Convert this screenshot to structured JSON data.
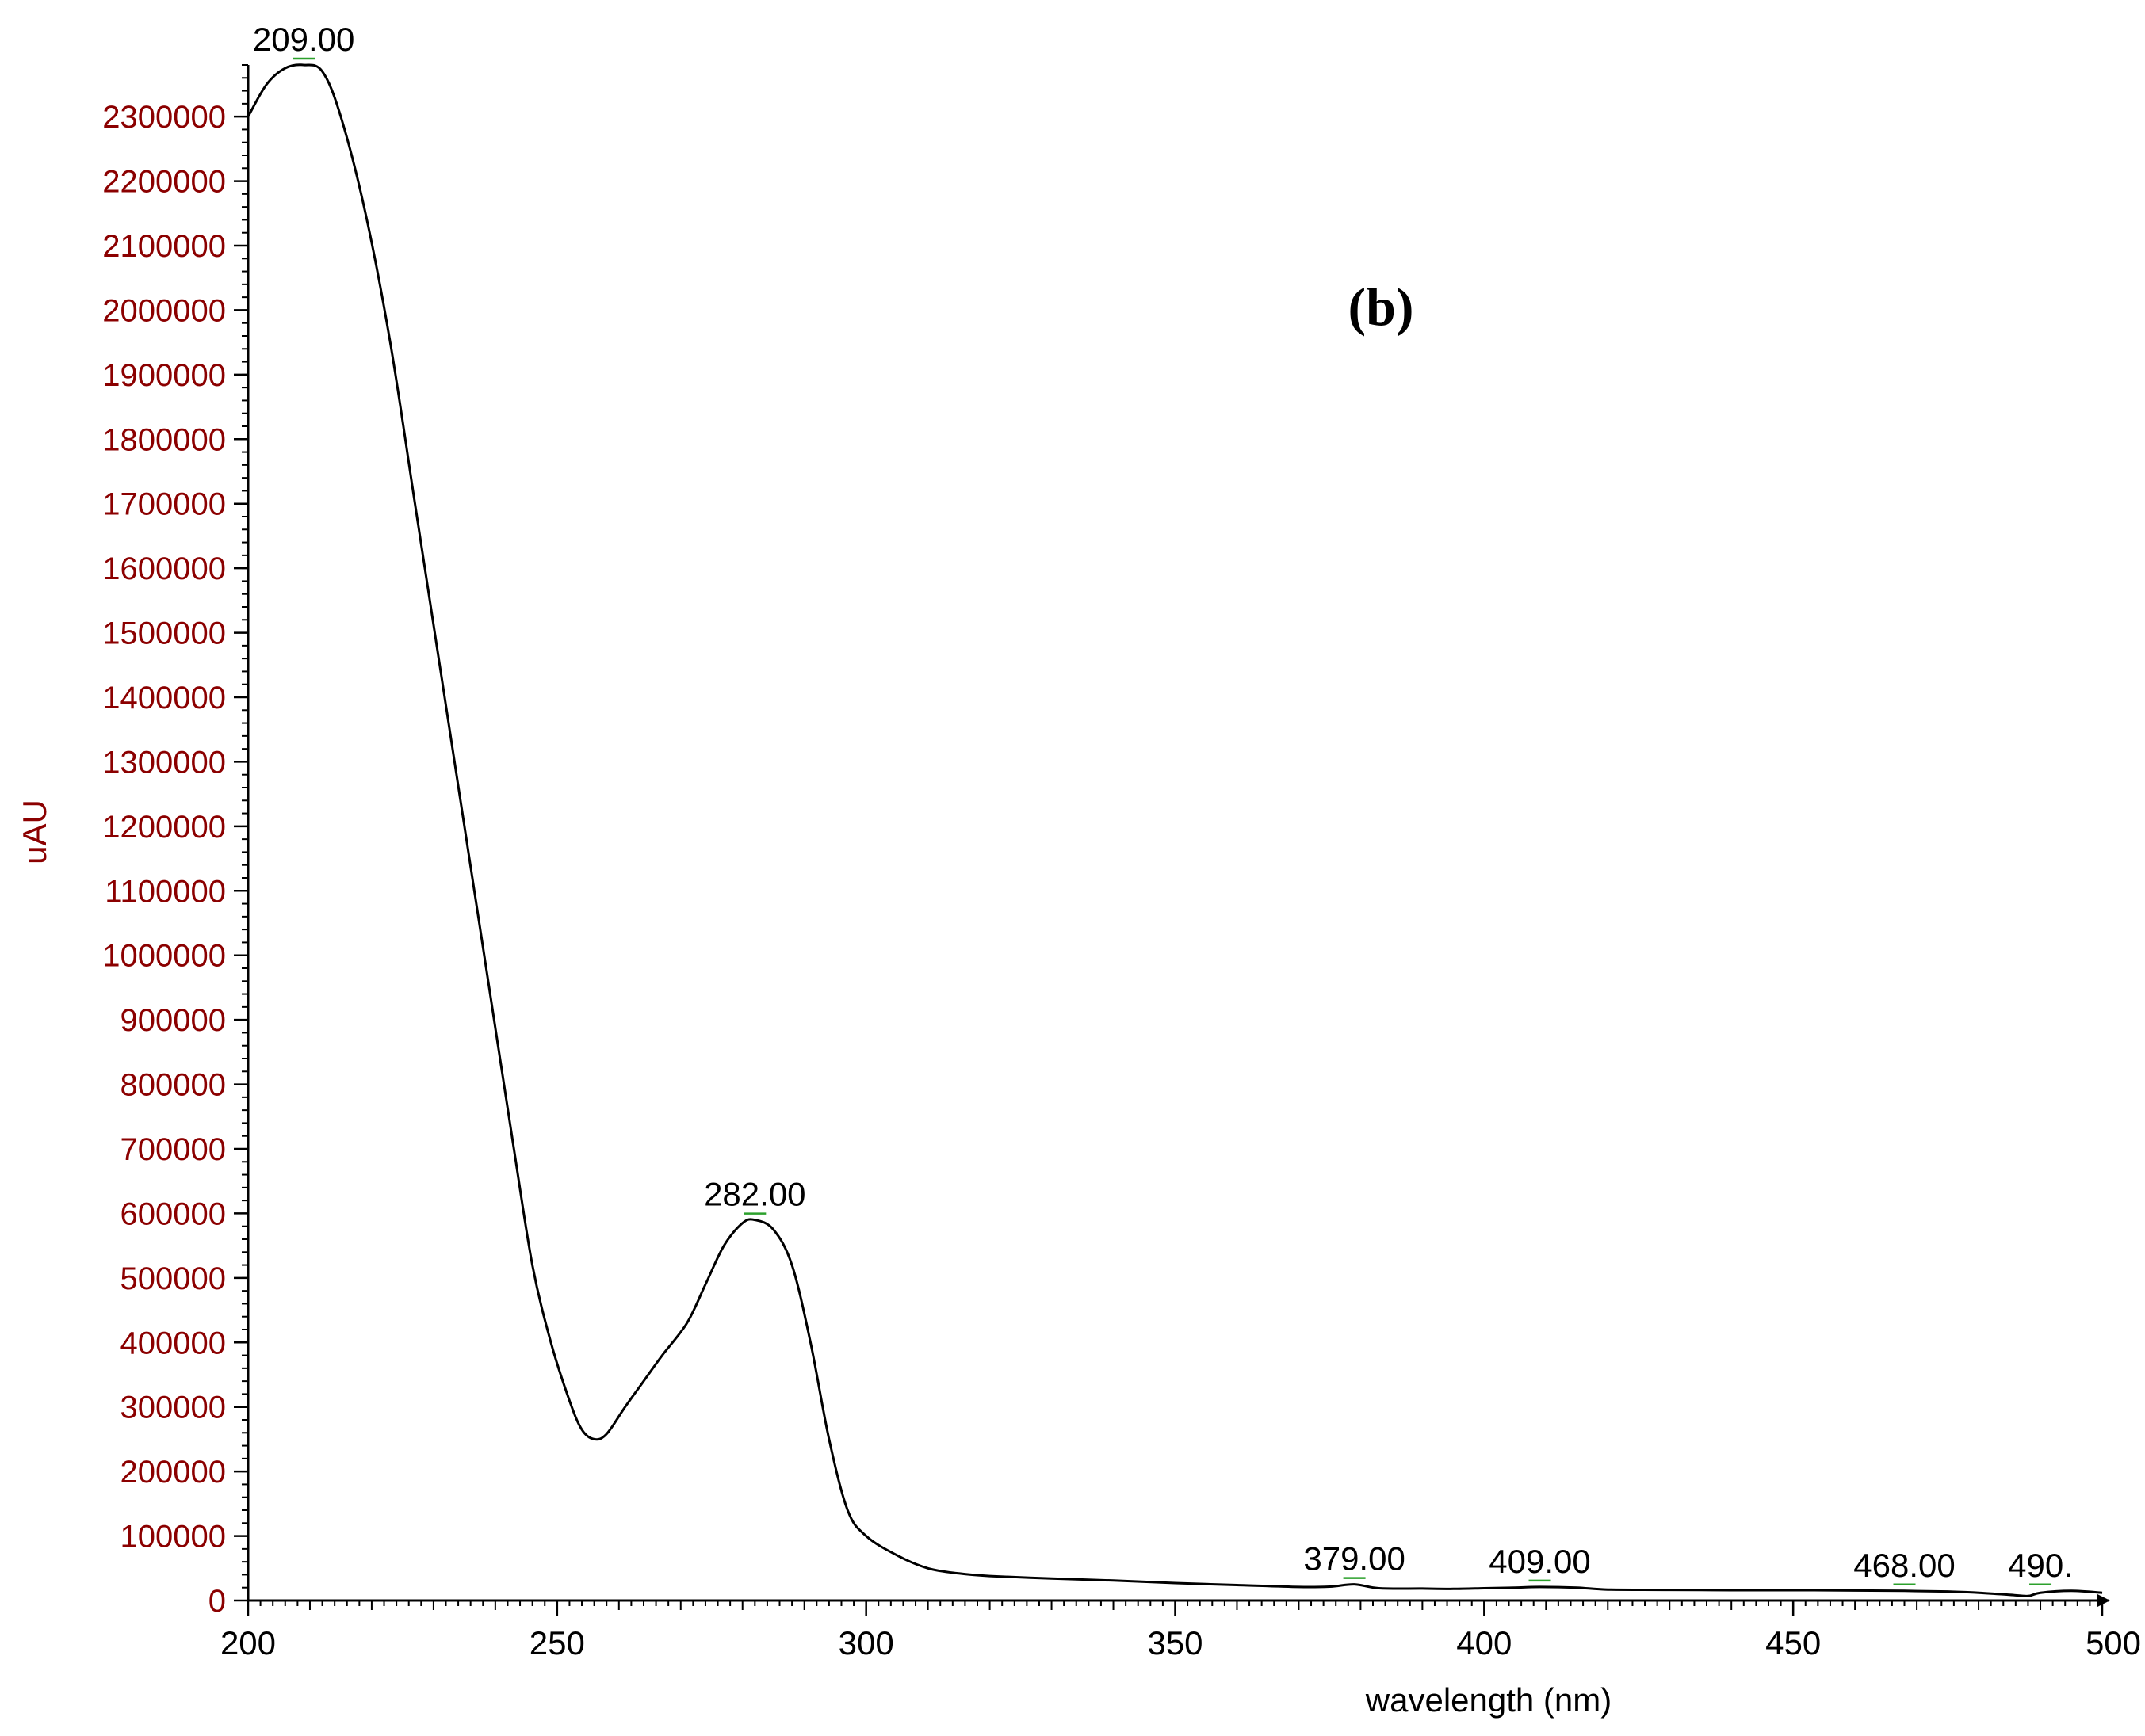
{
  "chart_data": {
    "type": "line",
    "panel_label": "(b)",
    "xlabel": "wavelength (nm)",
    "ylabel": "uAU",
    "xlim": [
      200,
      500
    ],
    "ylim": [
      0,
      2380000
    ],
    "x_ticks": [
      {
        "value": 200,
        "label": "200"
      },
      {
        "value": 250,
        "label": "250"
      },
      {
        "value": 300,
        "label": "300"
      },
      {
        "value": 350,
        "label": "350"
      },
      {
        "value": 400,
        "label": "400"
      },
      {
        "value": 450,
        "label": "450"
      },
      {
        "value": 500,
        "label": "500"
      }
    ],
    "y_ticks": [
      {
        "value": 0,
        "label": "0"
      },
      {
        "value": 100000,
        "label": "100000"
      },
      {
        "value": 200000,
        "label": "200000"
      },
      {
        "value": 300000,
        "label": "300000"
      },
      {
        "value": 400000,
        "label": "400000"
      },
      {
        "value": 500000,
        "label": "500000"
      },
      {
        "value": 600000,
        "label": "600000"
      },
      {
        "value": 700000,
        "label": "700000"
      },
      {
        "value": 800000,
        "label": "800000"
      },
      {
        "value": 900000,
        "label": "900000"
      },
      {
        "value": 1000000,
        "label": "1000000"
      },
      {
        "value": 1100000,
        "label": "1100000"
      },
      {
        "value": 1200000,
        "label": "1200000"
      },
      {
        "value": 1300000,
        "label": "1300000"
      },
      {
        "value": 1400000,
        "label": "1400000"
      },
      {
        "value": 1500000,
        "label": "1500000"
      },
      {
        "value": 1600000,
        "label": "1600000"
      },
      {
        "value": 1700000,
        "label": "1700000"
      },
      {
        "value": 1800000,
        "label": "1800000"
      },
      {
        "value": 1900000,
        "label": "1900000"
      },
      {
        "value": 2000000,
        "label": "2000000"
      },
      {
        "value": 2100000,
        "label": "2100000"
      },
      {
        "value": 2200000,
        "label": "2200000"
      },
      {
        "value": 2300000,
        "label": "2300000"
      }
    ],
    "series": [
      {
        "x": [
          200,
          203,
          206,
          209,
          212,
          215,
          219,
          223,
          227,
          231,
          235,
          239,
          243,
          246,
          249,
          252,
          254,
          256,
          258,
          261,
          264,
          267,
          271,
          274,
          277,
          280,
          282,
          285,
          288,
          291,
          294,
          297,
          300,
          305,
          310,
          315,
          320,
          330,
          340,
          350,
          360,
          370,
          375,
          379,
          383,
          390,
          395,
          400,
          405,
          409,
          415,
          420,
          430,
          440,
          450,
          460,
          468,
          475,
          480,
          485,
          488,
          490,
          495,
          500
        ],
        "y": [
          2300000,
          2350000,
          2375000,
          2380000,
          2370000,
          2300000,
          2150000,
          1950000,
          1700000,
          1450000,
          1200000,
          950000,
          700000,
          520000,
          400000,
          310000,
          265000,
          250000,
          258000,
          300000,
          340000,
          380000,
          430000,
          490000,
          550000,
          585000,
          590000,
          575000,
          520000,
          400000,
          250000,
          140000,
          100000,
          70000,
          50000,
          42000,
          38000,
          34000,
          31000,
          27000,
          24000,
          21000,
          21500,
          25000,
          19000,
          18500,
          18000,
          19000,
          20000,
          21000,
          20000,
          17000,
          16500,
          16000,
          16000,
          15500,
          15000,
          14000,
          12000,
          9000,
          7000,
          12000,
          15000,
          12000
        ],
        "color": "#000000"
      }
    ],
    "peak_labels": [
      {
        "x": 209,
        "y": 2380000,
        "label": "209.00"
      },
      {
        "x": 282,
        "y": 590000,
        "label": "282.00"
      },
      {
        "x": 379,
        "y": 25000,
        "label": "379.00"
      },
      {
        "x": 409,
        "y": 21000,
        "label": "409.00"
      },
      {
        "x": 468,
        "y": 15000,
        "label": "468.00"
      },
      {
        "x": 490,
        "y": 15000,
        "label": "490."
      }
    ],
    "colors": {
      "curve": "#000000",
      "axis": "#000000",
      "y_tick_label": "#8b0000",
      "y_axis_title": "#8b0000",
      "x_axis_title": "#000000",
      "peak_marker": "#2ca02c"
    },
    "grid": false,
    "legend": "none"
  }
}
